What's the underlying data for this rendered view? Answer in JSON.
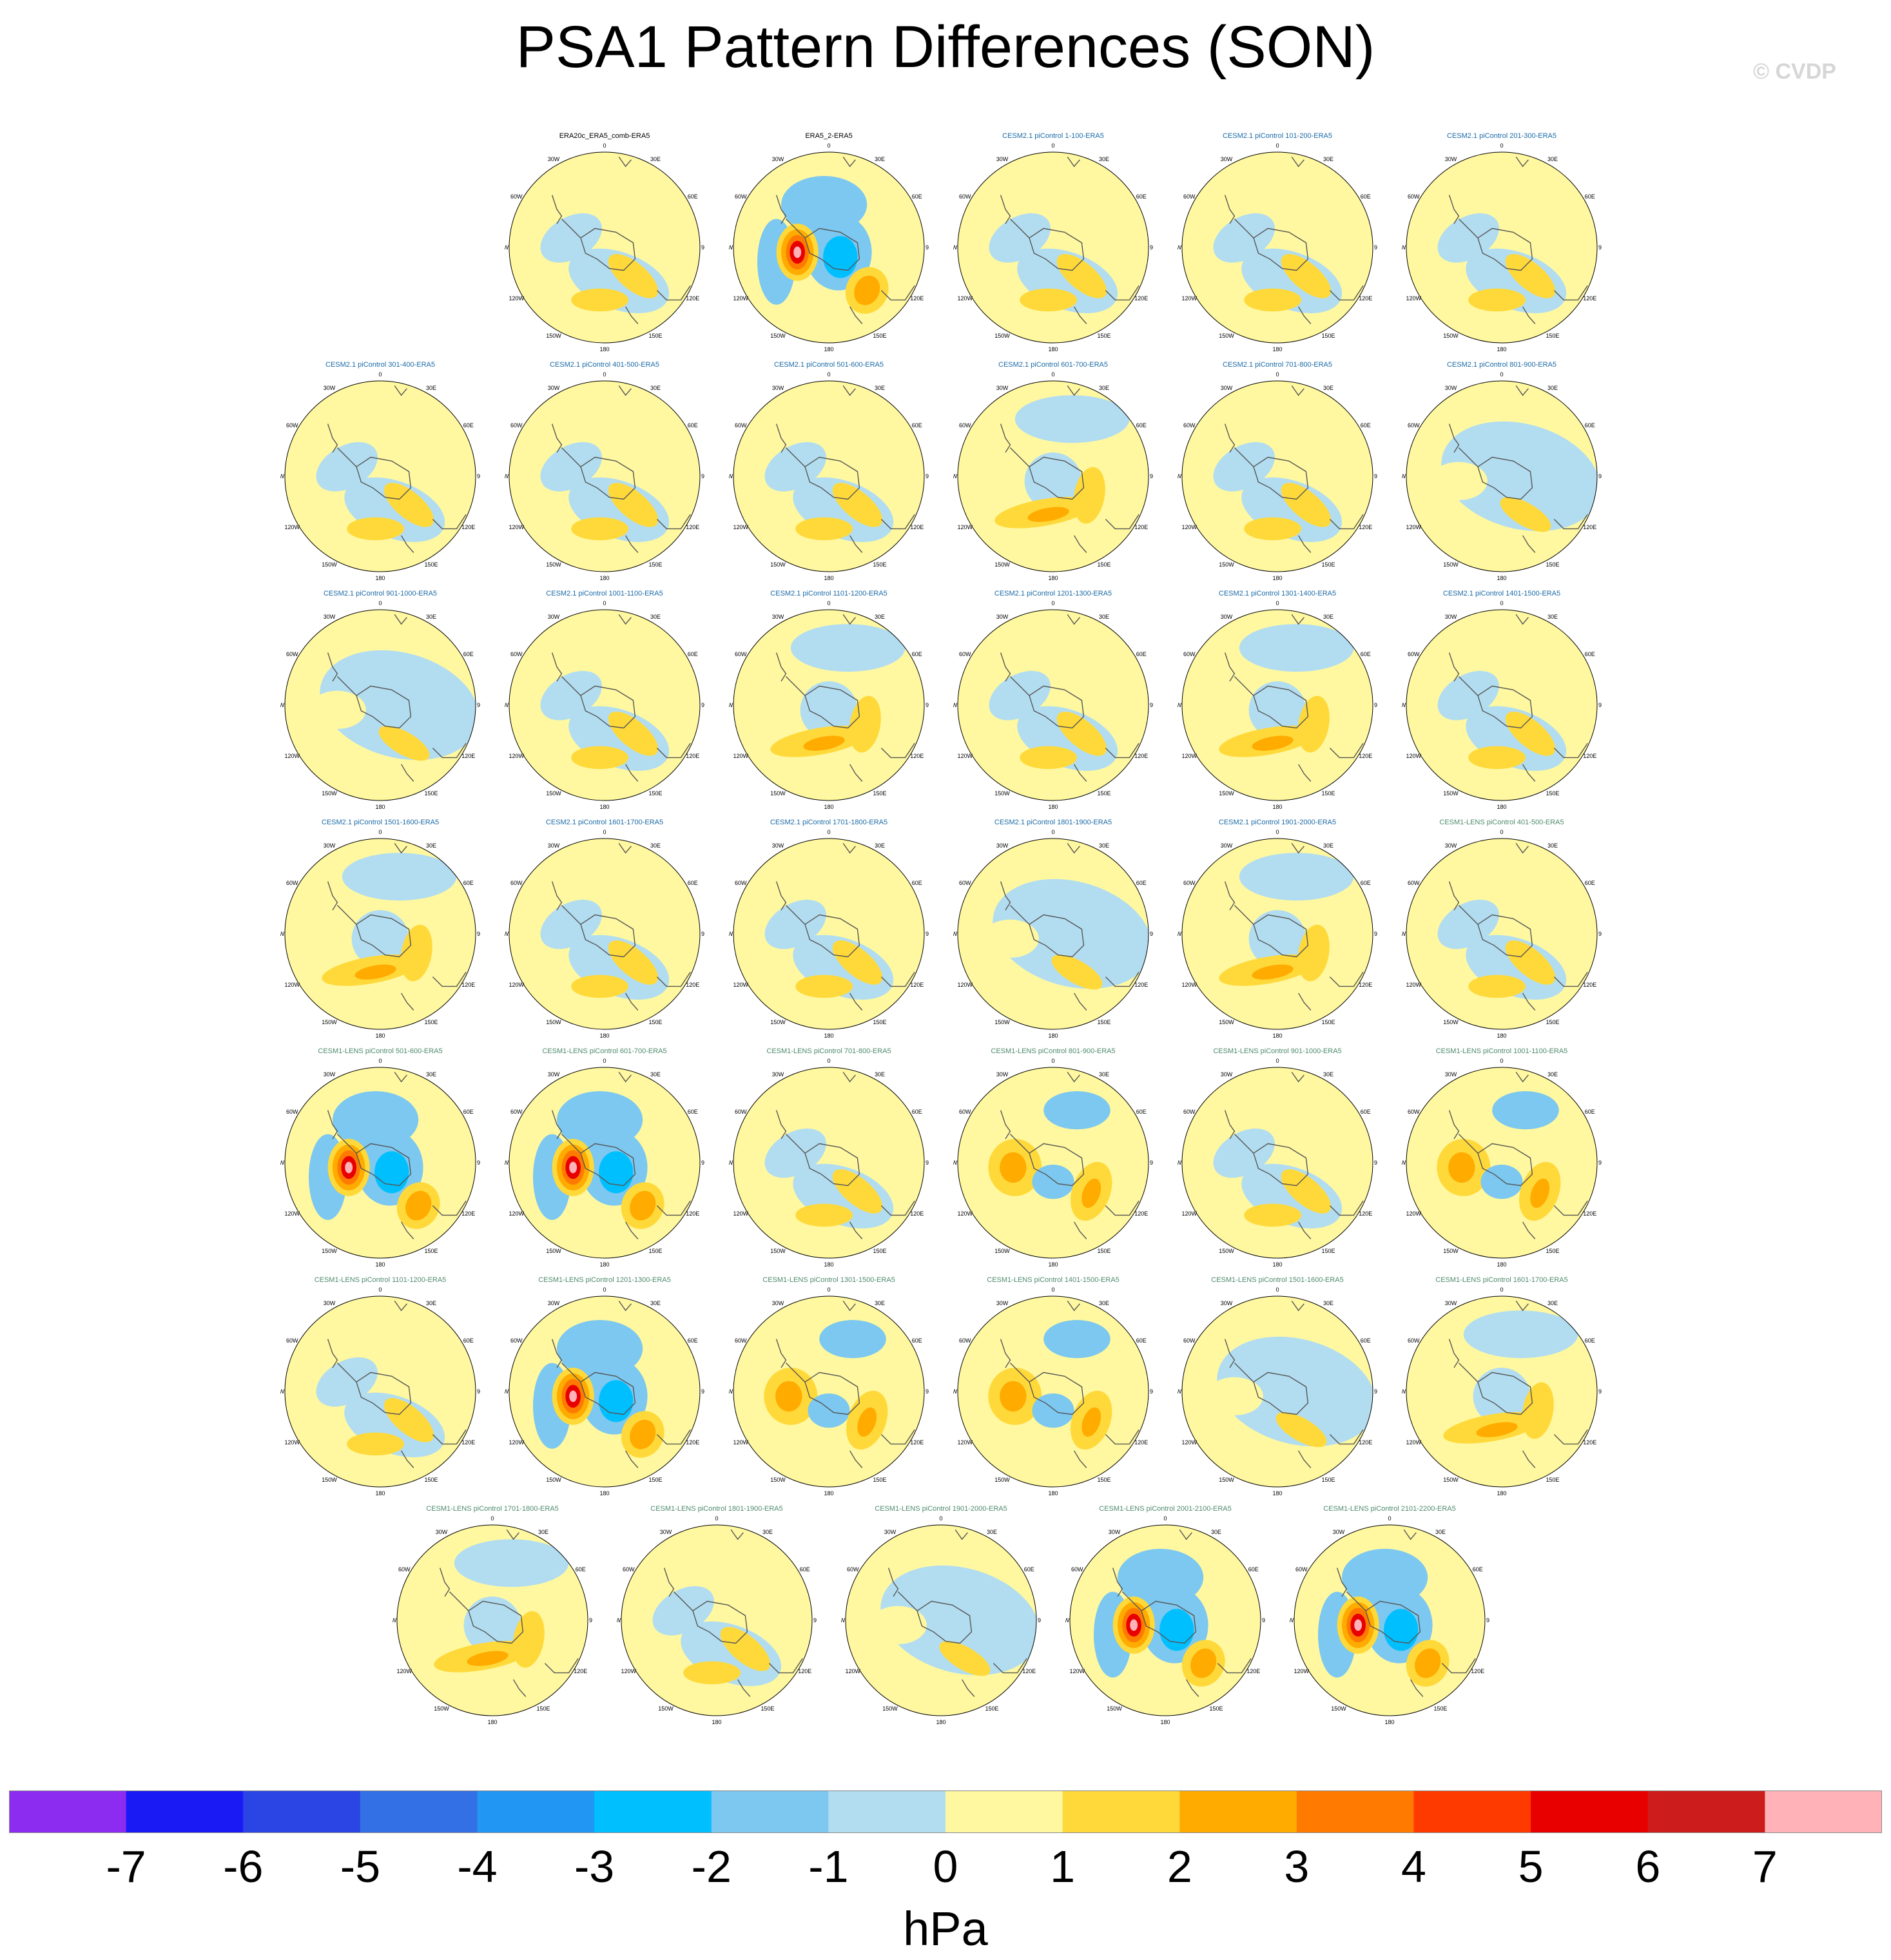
{
  "title": "PSA1 Pattern Differences (SON)",
  "watermark": "© CVDP",
  "colors": {
    "obs_title": "#000000",
    "cesm2_title": "#1a6aa6",
    "cesm1_title": "#4e8a6e"
  },
  "tick_labels": [
    "0",
    "30E",
    "60E",
    "90E",
    "120E",
    "150E",
    "180",
    "150W",
    "120W",
    "90W",
    "60W",
    "30W"
  ],
  "rows": [
    [
      {
        "title": "ERA20c_ERA5_comb-ERA5",
        "group": "obs",
        "pattern": "mild"
      },
      {
        "title": "ERA5_2-ERA5",
        "group": "obs",
        "pattern": "strong"
      },
      {
        "title": "CESM2.1 piControl 1-100-ERA5",
        "group": "cesm2",
        "pattern": "mild"
      },
      {
        "title": "CESM2.1 piControl 101-200-ERA5",
        "group": "cesm2",
        "pattern": "mild"
      },
      {
        "title": "CESM2.1 piControl 201-300-ERA5",
        "group": "cesm2",
        "pattern": "mild"
      }
    ],
    [
      {
        "title": "CESM2.1 piControl 301-400-ERA5",
        "group": "cesm2",
        "pattern": "mild"
      },
      {
        "title": "CESM2.1 piControl 401-500-ERA5",
        "group": "cesm2",
        "pattern": "mild"
      },
      {
        "title": "CESM2.1 piControl 501-600-ERA5",
        "group": "cesm2",
        "pattern": "mild"
      },
      {
        "title": "CESM2.1 piControl 601-700-ERA5",
        "group": "cesm2",
        "pattern": "ring"
      },
      {
        "title": "CESM2.1 piControl 701-800-ERA5",
        "group": "cesm2",
        "pattern": "mild"
      },
      {
        "title": "CESM2.1 piControl 801-900-ERA5",
        "group": "cesm2",
        "pattern": "blue"
      }
    ],
    [
      {
        "title": "CESM2.1 piControl 901-1000-ERA5",
        "group": "cesm2",
        "pattern": "blue"
      },
      {
        "title": "CESM2.1 piControl 1001-1100-ERA5",
        "group": "cesm2",
        "pattern": "mild"
      },
      {
        "title": "CESM2.1 piControl 1101-1200-ERA5",
        "group": "cesm2",
        "pattern": "ring"
      },
      {
        "title": "CESM2.1 piControl 1201-1300-ERA5",
        "group": "cesm2",
        "pattern": "mild"
      },
      {
        "title": "CESM2.1 piControl 1301-1400-ERA5",
        "group": "cesm2",
        "pattern": "ring"
      },
      {
        "title": "CESM2.1 piControl 1401-1500-ERA5",
        "group": "cesm2",
        "pattern": "mild"
      }
    ],
    [
      {
        "title": "CESM2.1 piControl 1501-1600-ERA5",
        "group": "cesm2",
        "pattern": "ring"
      },
      {
        "title": "CESM2.1 piControl 1601-1700-ERA5",
        "group": "cesm2",
        "pattern": "mild"
      },
      {
        "title": "CESM2.1 piControl 1701-1800-ERA5",
        "group": "cesm2",
        "pattern": "mild"
      },
      {
        "title": "CESM2.1 piControl 1801-1900-ERA5",
        "group": "cesm2",
        "pattern": "blue"
      },
      {
        "title": "CESM2.1 piControl 1901-2000-ERA5",
        "group": "cesm2",
        "pattern": "ring"
      },
      {
        "title": "CESM1-LENS piControl 401-500-ERA5",
        "group": "cesm1",
        "pattern": "mild"
      }
    ],
    [
      {
        "title": "CESM1-LENS piControl 501-600-ERA5",
        "group": "cesm1",
        "pattern": "strong"
      },
      {
        "title": "CESM1-LENS piControl 601-700-ERA5",
        "group": "cesm1",
        "pattern": "strong"
      },
      {
        "title": "CESM1-LENS piControl 701-800-ERA5",
        "group": "cesm1",
        "pattern": "mild"
      },
      {
        "title": "CESM1-LENS piControl 801-900-ERA5",
        "group": "cesm1",
        "pattern": "medium"
      },
      {
        "title": "CESM1-LENS piControl 901-1000-ERA5",
        "group": "cesm1",
        "pattern": "mild"
      },
      {
        "title": "CESM1-LENS piControl 1001-1100-ERA5",
        "group": "cesm1",
        "pattern": "medium"
      }
    ],
    [
      {
        "title": "CESM1-LENS piControl 1101-1200-ERA5",
        "group": "cesm1",
        "pattern": "mild"
      },
      {
        "title": "CESM1-LENS piControl 1201-1300-ERA5",
        "group": "cesm1",
        "pattern": "strong"
      },
      {
        "title": "CESM1-LENS piControl 1301-1500-ERA5",
        "group": "cesm1",
        "pattern": "medium"
      },
      {
        "title": "CESM1-LENS piControl 1401-1500-ERA5",
        "group": "cesm1",
        "pattern": "medium"
      },
      {
        "title": "CESM1-LENS piControl 1501-1600-ERA5",
        "group": "cesm1",
        "pattern": "blue"
      },
      {
        "title": "CESM1-LENS piControl 1601-1700-ERA5",
        "group": "cesm1",
        "pattern": "ring"
      }
    ],
    [
      {
        "title": "CESM1-LENS piControl 1701-1800-ERA5",
        "group": "cesm1",
        "pattern": "ring"
      },
      {
        "title": "CESM1-LENS piControl 1801-1900-ERA5",
        "group": "cesm1",
        "pattern": "mild"
      },
      {
        "title": "CESM1-LENS piControl 1901-2000-ERA5",
        "group": "cesm1",
        "pattern": "blue"
      },
      {
        "title": "CESM1-LENS piControl 2001-2100-ERA5",
        "group": "cesm1",
        "pattern": "strong"
      },
      {
        "title": "CESM1-LENS piControl 2101-2200-ERA5",
        "group": "cesm1",
        "pattern": "strong"
      }
    ]
  ],
  "colorbar": {
    "colors": [
      "#8b2cf0",
      "#1a1af5",
      "#2b45e5",
      "#3370e6",
      "#2196f3",
      "#00bfff",
      "#7cc8f0",
      "#b2ddf0",
      "#fff8a0",
      "#ffd93a",
      "#ffab00",
      "#ff7a00",
      "#ff3a00",
      "#e80000",
      "#cd1c1c",
      "#ffb3b8"
    ],
    "tick_labels": [
      "-7",
      "-6",
      "-5",
      "-4",
      "-3",
      "-2",
      "-1",
      "0",
      "1",
      "2",
      "3",
      "4",
      "5",
      "6",
      "7"
    ],
    "units": "hPa"
  }
}
